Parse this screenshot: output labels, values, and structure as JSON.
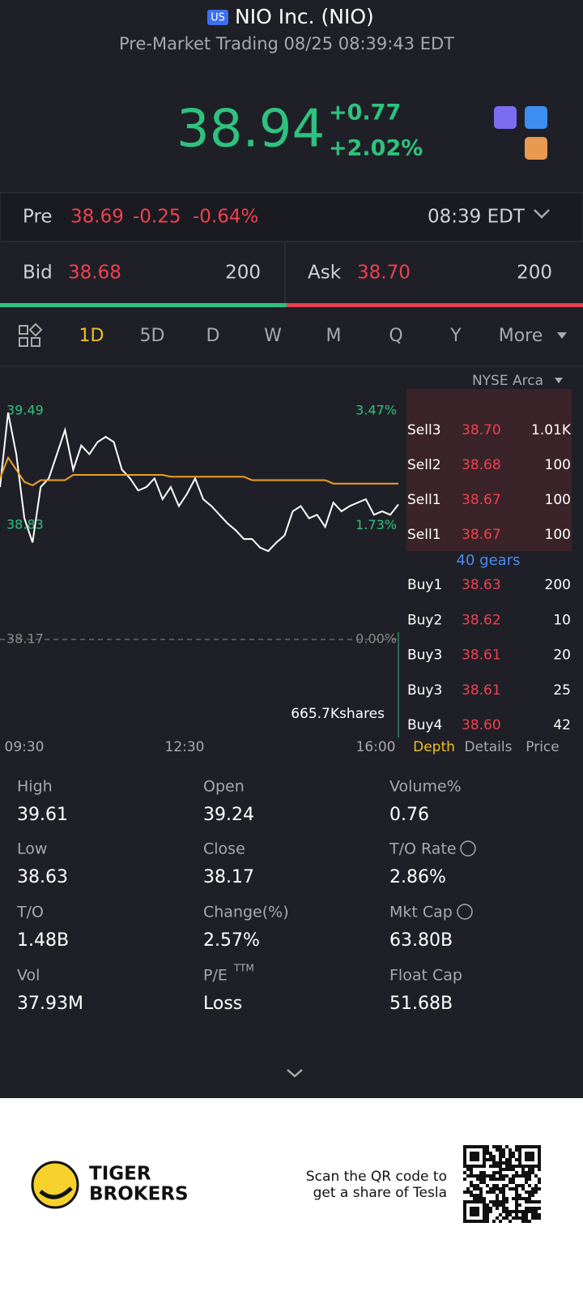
{
  "header": {
    "market_badge": "US",
    "title": "NIO Inc. (NIO)",
    "subtitle": "Pre-Market Trading 08/25 08:39:43 EDT"
  },
  "quote": {
    "price": "38.94",
    "change": "+0.77",
    "change_pct": "+2.02%"
  },
  "pre_market": {
    "label": "Pre",
    "price": "38.69",
    "change": "-0.25",
    "change_pct": "-0.64%",
    "time": "08:39 EDT"
  },
  "bid_ask": {
    "bid_label": "Bid",
    "bid_price": "38.68",
    "bid_size": "200",
    "ask_label": "Ask",
    "ask_price": "38.70",
    "ask_size": "200"
  },
  "tabs": [
    "1D",
    "5D",
    "D",
    "W",
    "M",
    "Q",
    "Y",
    "More"
  ],
  "exchange": "NYSE Arca",
  "chart_data": {
    "type": "line",
    "ylim": [
      38.17,
      39.49
    ],
    "yticks": [
      38.17,
      38.83,
      39.49
    ],
    "y2lim": [
      0,
      3.47
    ],
    "y2ticks": [
      {
        "value": 0,
        "label": "0.00%"
      },
      {
        "value": 1.73,
        "label": "1.73%"
      },
      {
        "value": 3.47,
        "label": "3.47%"
      }
    ],
    "x_labels": [
      "09:30",
      "12:30",
      "16:00"
    ],
    "volume_label": "665.7Kshares",
    "series": [
      {
        "color": "#ffffff",
        "values": [
          39.05,
          39.48,
          39.24,
          38.87,
          38.73,
          39.05,
          39.1,
          39.24,
          39.38,
          39.15,
          39.29,
          39.24,
          39.31,
          39.34,
          39.31,
          39.15,
          39.1,
          39.03,
          39.05,
          39.1,
          38.98,
          39.05,
          38.94,
          39.01,
          39.1,
          38.98,
          38.94,
          38.89,
          38.84,
          38.8,
          38.75,
          38.75,
          38.7,
          38.68,
          38.73,
          38.77,
          38.91,
          38.94,
          38.87,
          38.89,
          38.82,
          38.96,
          38.91,
          38.94,
          38.96,
          38.98,
          38.89,
          38.91,
          38.89,
          38.95
        ]
      },
      {
        "color": "#f0a020",
        "values": [
          39.1,
          39.22,
          39.15,
          39.08,
          39.06,
          39.09,
          39.09,
          39.09,
          39.09,
          39.12,
          39.12,
          39.12,
          39.12,
          39.12,
          39.12,
          39.12,
          39.12,
          39.12,
          39.12,
          39.12,
          39.12,
          39.11,
          39.11,
          39.11,
          39.11,
          39.11,
          39.11,
          39.11,
          39.11,
          39.11,
          39.11,
          39.09,
          39.09,
          39.09,
          39.09,
          39.09,
          39.09,
          39.09,
          39.09,
          39.09,
          39.09,
          39.07,
          39.07,
          39.07,
          39.07,
          39.07,
          39.07,
          39.07,
          39.07,
          39.07
        ]
      }
    ]
  },
  "order_book": {
    "asks": [
      [
        "Sell3",
        "38.70",
        "1.01K"
      ],
      [
        "Sell2",
        "38.68",
        "100"
      ],
      [
        "Sell1",
        "38.67",
        "100"
      ],
      [
        "Sell1",
        "38.67",
        "100"
      ]
    ],
    "gears": "40 gears",
    "bids": [
      [
        "Buy1",
        "38.63",
        "200"
      ],
      [
        "Buy2",
        "38.62",
        "10"
      ],
      [
        "Buy3",
        "38.61",
        "20"
      ],
      [
        "Buy3",
        "38.61",
        "25"
      ],
      [
        "Buy4",
        "38.60",
        "42"
      ]
    ],
    "tabs": [
      "Depth",
      "Details",
      "Price"
    ]
  },
  "stats": [
    {
      "label": "High",
      "value": "39.61"
    },
    {
      "label": "Open",
      "value": "39.24"
    },
    {
      "label": "Volume%",
      "value": "0.76"
    },
    {
      "label": "Low",
      "value": "38.63"
    },
    {
      "label": "Close",
      "value": "38.17"
    },
    {
      "label": "T/O Rate",
      "value": "2.86%"
    },
    {
      "label": "T/O",
      "value": "1.48B"
    },
    {
      "label": "Change(%)",
      "value": "2.57%"
    },
    {
      "label": "Mkt Cap",
      "value": "63.80B"
    },
    {
      "label": "Vol",
      "value": "37.93M"
    },
    {
      "label": "P/E",
      "label_sup": "TTM",
      "value": "Loss"
    },
    {
      "label": "Float Cap",
      "value": "51.68B"
    }
  ],
  "footer": {
    "brand_line1": "TIGER",
    "brand_line2": "BROKERS",
    "promo_line1": "Scan the QR code to",
    "promo_line2": "get a share of Tesla"
  }
}
